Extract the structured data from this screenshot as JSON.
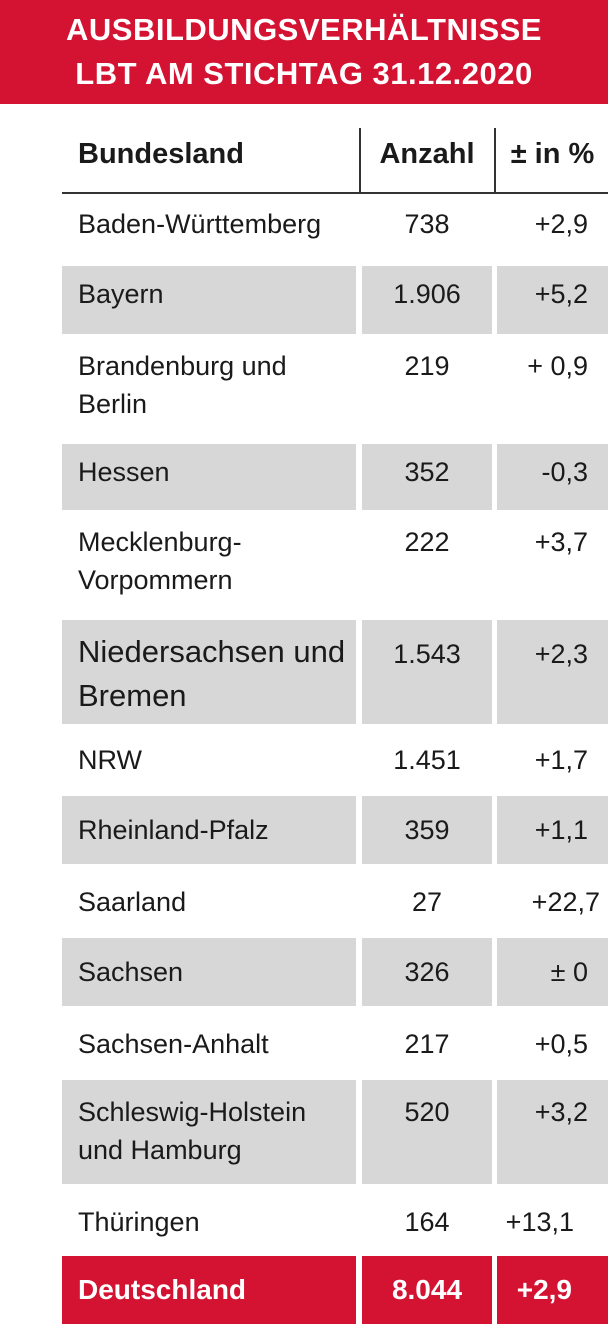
{
  "title": {
    "line1": "AUSBILDUNGSVERHÄLTNISSE",
    "line2": "LBT AM STICHTAG 31.12.2020"
  },
  "header": {
    "bundesland": "Bundesland",
    "anzahl": "Anzahl",
    "change": "± in %"
  },
  "rows": [
    {
      "name": "Baden-Württemberg",
      "count": "738",
      "change": "+2,9"
    },
    {
      "name": "Bayern",
      "count": "1.906",
      "change": "+5,2"
    },
    {
      "name": "Brandenburg und",
      "name2": "Berlin",
      "count": "219",
      "change": "+ 0,9"
    },
    {
      "name": "Hessen",
      "count": "352",
      "change": "-0,3"
    },
    {
      "name": "Mecklenburg-",
      "name2": "Vorpommern",
      "count": "222",
      "change": "+3,7"
    },
    {
      "name": "Niedersachsen und",
      "name2": "Bremen",
      "count": "1.543",
      "change": "+2,3"
    },
    {
      "name": "NRW",
      "count": "1.451",
      "change": "+1,7"
    },
    {
      "name": "Rheinland-Pfalz",
      "count": "359",
      "change": "+1,1"
    },
    {
      "name": "Saarland",
      "count": "27",
      "change": "+22,7"
    },
    {
      "name": "Sachsen",
      "count": "326",
      "change": "± 0"
    },
    {
      "name": "Sachsen-Anhalt",
      "count": "217",
      "change": "+0,5"
    },
    {
      "name": "Schleswig-Holstein",
      "name2": "und Hamburg",
      "count": "520",
      "change": "+3,2"
    },
    {
      "name": "Thüringen",
      "count": "164",
      "change": "+13,1"
    }
  ],
  "total": {
    "name": "Deutschland",
    "count": "8.044",
    "change": "+2,9"
  },
  "colors": {
    "accent": "#d41232",
    "shade": "#d7d7d7"
  }
}
